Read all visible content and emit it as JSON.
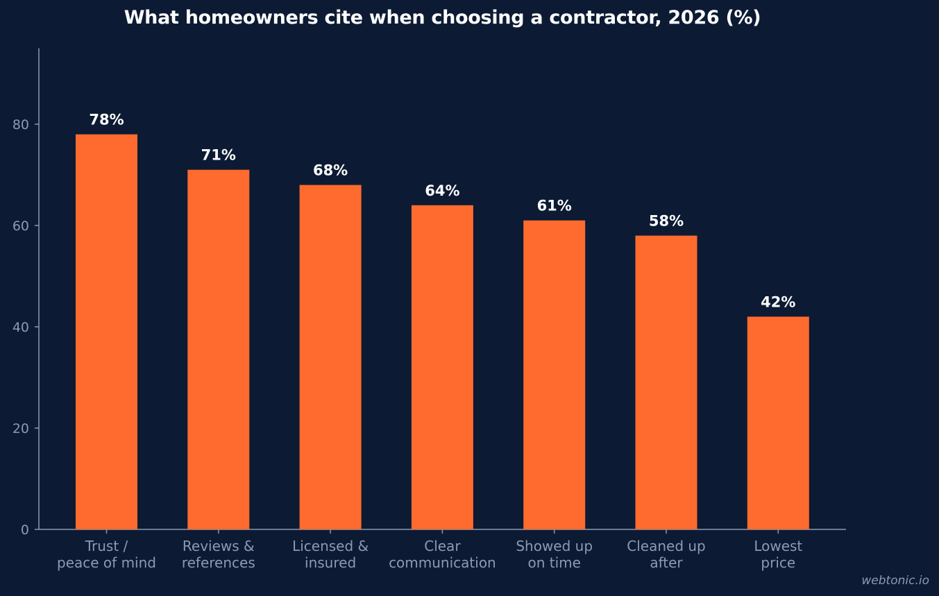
{
  "chart_data": {
    "type": "bar",
    "title": "What homeowners cite when choosing a contractor, 2026 (%)",
    "categories": [
      [
        "Trust /",
        "peace of mind"
      ],
      [
        "Reviews &",
        "references"
      ],
      [
        "Licensed &",
        "insured"
      ],
      [
        "Clear",
        "communication"
      ],
      [
        "Showed up",
        "on time"
      ],
      [
        "Cleaned up",
        "after"
      ],
      [
        "Lowest",
        "price"
      ]
    ],
    "values": [
      78,
      71,
      68,
      64,
      61,
      58,
      42
    ],
    "data_labels": [
      "78%",
      "71%",
      "68%",
      "64%",
      "61%",
      "58%",
      "42%"
    ],
    "yticks": [
      0,
      20,
      40,
      60,
      80
    ],
    "ylim": [
      0,
      95
    ],
    "xlabel": "",
    "ylabel": "",
    "grid": false,
    "bar_color": "#ff6b2e",
    "axis_color": "#8b9bb4"
  },
  "footer": {
    "credit": "webtonic.io"
  }
}
